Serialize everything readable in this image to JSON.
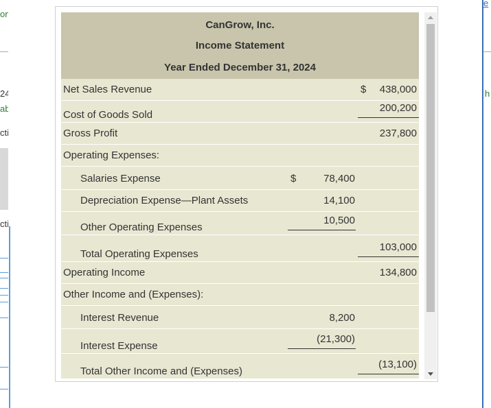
{
  "background": {
    "left_fragments": [
      "on",
      "24",
      "ab",
      "cti",
      "cti"
    ],
    "right_fragments": [
      "e",
      "h"
    ]
  },
  "statement": {
    "company": "CanGrow, Inc.",
    "title": "Income Statement",
    "period": "Year Ended December 31, 2024",
    "rows": [
      {
        "label": "Net Sales Revenue",
        "cur2": "$",
        "val2": "438,000"
      },
      {
        "label": "Cost of Goods Sold",
        "val2": "200,200"
      },
      {
        "label": "Gross Profit",
        "val2": "237,800"
      },
      {
        "label": "Operating Expenses:"
      },
      {
        "label": "Salaries Expense",
        "cur1": "$",
        "val1": "78,400"
      },
      {
        "label": "Depreciation Expense—Plant Assets",
        "val1": "14,100"
      },
      {
        "label": "Other Operating Expenses",
        "val1": "10,500"
      },
      {
        "label": "Total Operating Expenses",
        "val2": "103,000"
      },
      {
        "label": "Operating Income",
        "val2": "134,800"
      },
      {
        "label": "Other Income and (Expenses):"
      },
      {
        "label": "Interest Revenue",
        "val1": "8,200"
      },
      {
        "label": "Interest Expense",
        "val1": "(21,300)"
      },
      {
        "label": "Total Other Income and (Expenses)",
        "val2": "(13,100)"
      }
    ]
  }
}
